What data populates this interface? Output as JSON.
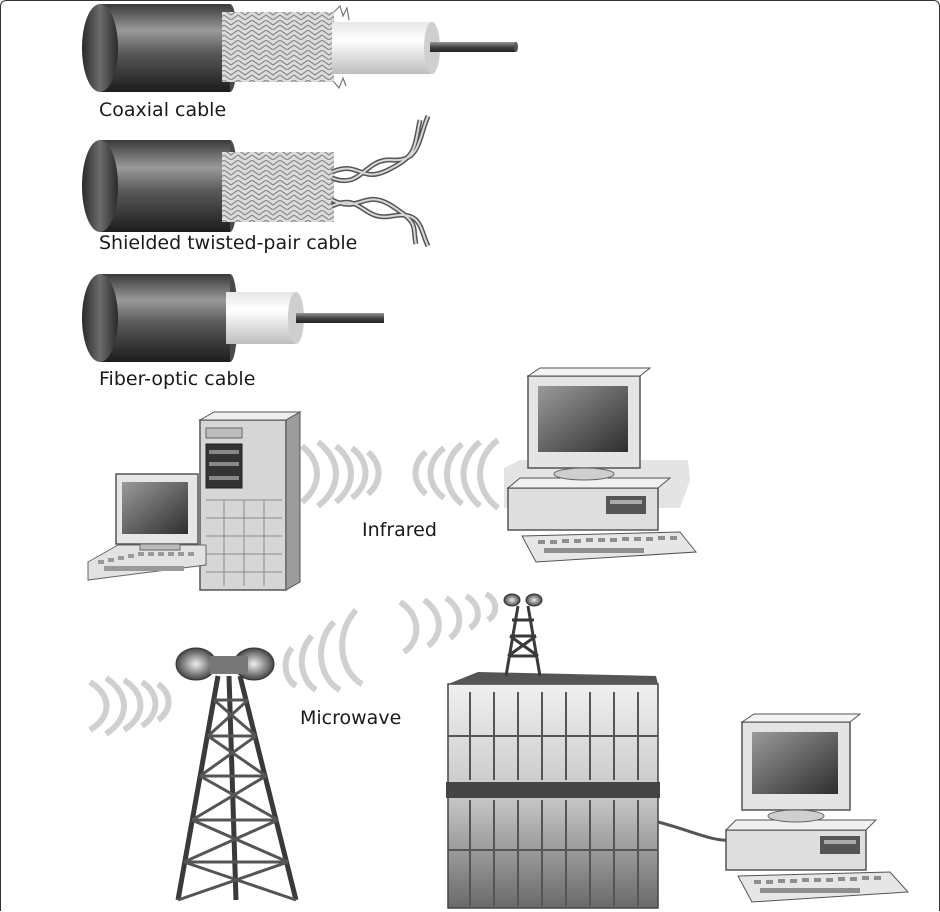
{
  "labels": {
    "coaxial": "Coaxial cable",
    "stp": "Shielded twisted-pair cable",
    "fiber": "Fiber-optic cable",
    "infrared": "Infrared",
    "microwave": "Microwave"
  },
  "icons": [
    "coaxial-cable-icon",
    "shielded-twisted-pair-icon",
    "fiber-optic-cable-icon",
    "server-tower-icon",
    "desktop-computer-icon",
    "microwave-tower-icon",
    "office-building-icon"
  ]
}
